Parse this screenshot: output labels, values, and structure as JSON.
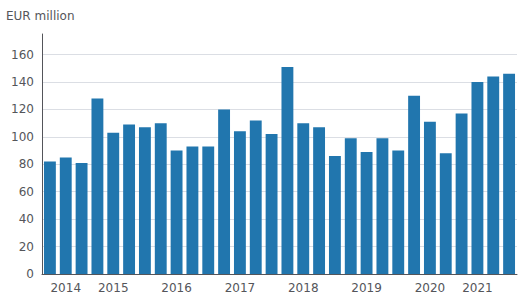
{
  "chart_data": {
    "type": "bar",
    "ylabel": "EUR million",
    "categories": [
      null,
      "2014",
      null,
      null,
      "2015",
      null,
      null,
      null,
      "2016",
      null,
      null,
      null,
      "2017",
      null,
      null,
      null,
      "2018",
      null,
      null,
      null,
      "2019",
      null,
      null,
      null,
      "2020",
      null,
      null,
      "2021",
      null,
      null
    ],
    "values": [
      82,
      85,
      81,
      128,
      103,
      109,
      107,
      110,
      90,
      93,
      93,
      120,
      104,
      112,
      102,
      151,
      110,
      107,
      86,
      99,
      89,
      99,
      90,
      130,
      111,
      88,
      117,
      140,
      144,
      146
    ],
    "color": "#2176ae",
    "ylim": [
      0,
      175
    ],
    "yticks": [
      0,
      20,
      40,
      60,
      80,
      100,
      120,
      140,
      160
    ],
    "grid": true
  }
}
